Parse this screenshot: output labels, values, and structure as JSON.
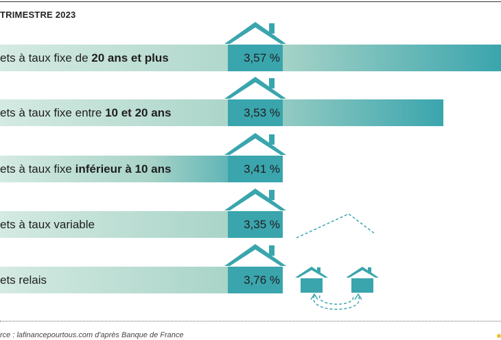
{
  "header": {
    "title": "TRIMESTRE 2023"
  },
  "footer": {
    "source": "rce : lafinancepourtous.com d'après Banque de France"
  },
  "colors": {
    "bar_light": "#d4eae2",
    "bar_mid": "#a9d4c8",
    "bar_dark": "#3aa5ad",
    "house": "#3aa5ad",
    "dashed": "#3aa5ad"
  },
  "icons": [
    "house-icon",
    "dashed-roof-outline",
    "two-houses-exchange-icon"
  ],
  "chart_data": {
    "type": "bar",
    "orientation": "horizontal",
    "unit": "%",
    "title": "TRIMESTRE 2023",
    "grid": false,
    "categories": [
      {
        "parts": [
          {
            "text": "ets à taux fixe de ",
            "bold": false
          },
          {
            "text": "20 ans et plus",
            "bold": true
          }
        ]
      },
      {
        "parts": [
          {
            "text": "ets à taux fixe entre ",
            "bold": false
          },
          {
            "text": "10 et 20 ans",
            "bold": true
          }
        ]
      },
      {
        "parts": [
          {
            "text": "ets à taux fixe ",
            "bold": false
          },
          {
            "text": "inférieur à 10 ans",
            "bold": true
          }
        ]
      },
      {
        "parts": [
          {
            "text": "ets à taux variable",
            "bold": false
          }
        ]
      },
      {
        "parts": [
          {
            "text": "ets relais",
            "bold": false
          }
        ]
      }
    ],
    "values": [
      3.57,
      3.53,
      3.41,
      3.35,
      3.76
    ],
    "value_labels": [
      "3,57 %",
      "3,53 %",
      "3,41 %",
      "3,35 %",
      "3,76 %"
    ]
  }
}
